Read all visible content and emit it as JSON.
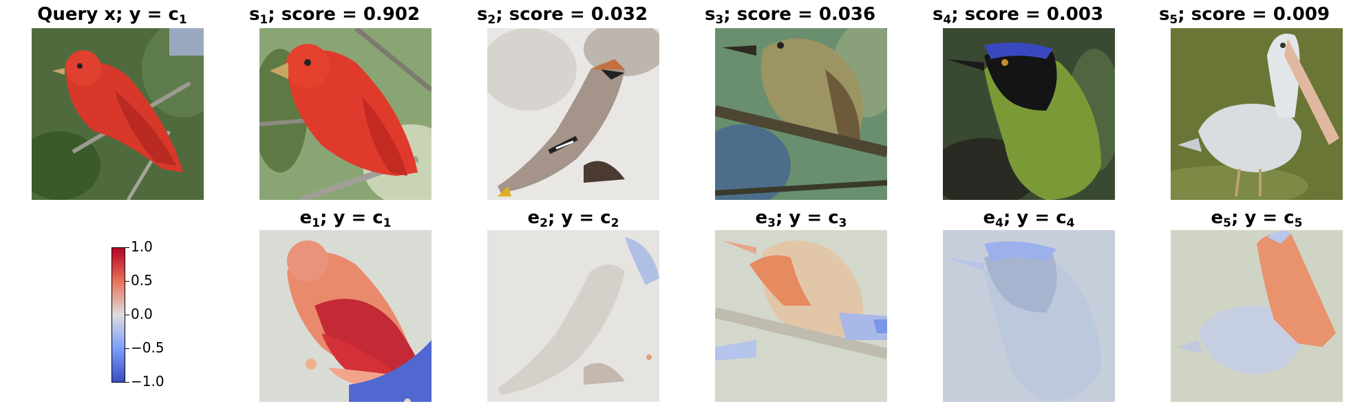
{
  "query": {
    "prefix": "Query x; y",
    "label": "c",
    "label_sub": "1"
  },
  "samples": [
    {
      "name": "s",
      "sub": "1",
      "score_text": "score = 0.902"
    },
    {
      "name": "s",
      "sub": "2",
      "score_text": "score = 0.032"
    },
    {
      "name": "s",
      "sub": "3",
      "score_text": "score = 0.036"
    },
    {
      "name": "s",
      "sub": "4",
      "score_text": "score = 0.003"
    },
    {
      "name": "s",
      "sub": "5",
      "score_text": "score = 0.009"
    }
  ],
  "explanations": [
    {
      "name": "e",
      "sub": "1",
      "label": "c",
      "label_sub": "1"
    },
    {
      "name": "e",
      "sub": "2",
      "label": "c",
      "label_sub": "2"
    },
    {
      "name": "e",
      "sub": "3",
      "label": "c",
      "label_sub": "3"
    },
    {
      "name": "e",
      "sub": "4",
      "label": "c",
      "label_sub": "4"
    },
    {
      "name": "e",
      "sub": "5",
      "label": "c",
      "label_sub": "5"
    }
  ],
  "colorbar": {
    "ticks": [
      "1.0",
      "0.5",
      "0.0",
      "−0.5",
      "−1.0"
    ],
    "colors": [
      "#b40426",
      "#dddddd",
      "#3b4cc0"
    ]
  },
  "icons": [
    "red-bird-image",
    "waxwing-image",
    "flycatcher-image",
    "green-jay-image",
    "pelican-image"
  ]
}
